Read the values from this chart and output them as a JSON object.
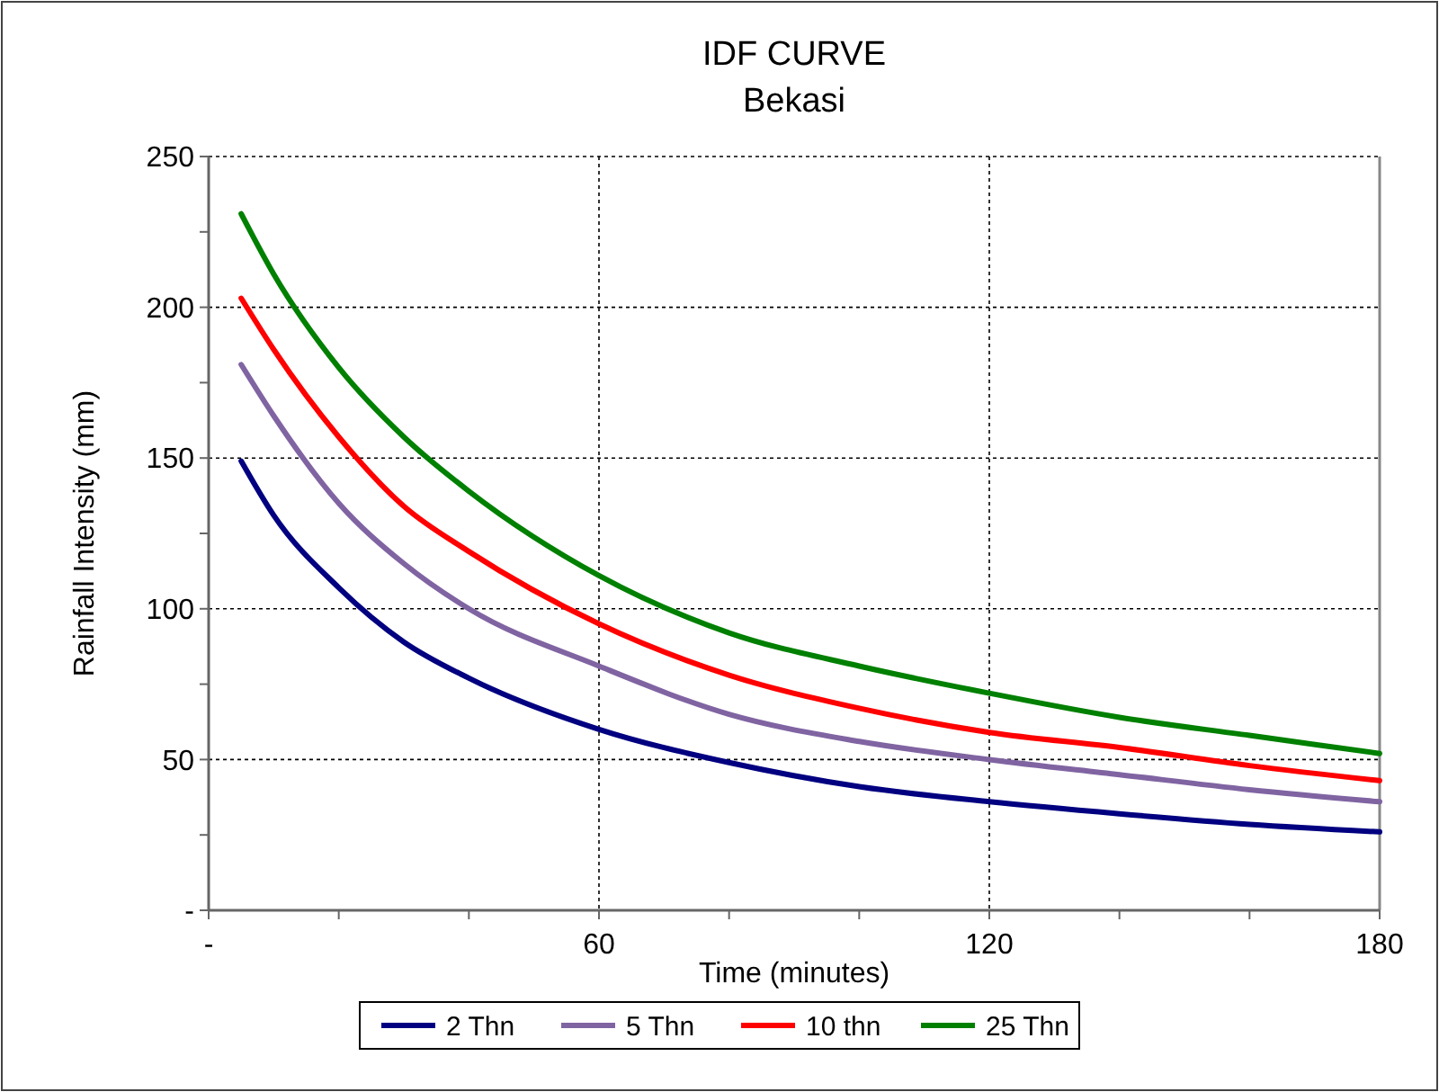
{
  "chart_data": {
    "type": "line",
    "title": "IDF CURVE",
    "subtitle": "Bekasi",
    "xlabel": "Time (minutes)",
    "ylabel": "Rainfall Intensity (mm)",
    "x": [
      5,
      10,
      20,
      30,
      40,
      60,
      80,
      100,
      120,
      140,
      160,
      180
    ],
    "series": [
      {
        "name": "2 Thn",
        "color": "#000080",
        "values": [
          149,
          131,
          107,
          89,
          77,
          60,
          49,
          41,
          36,
          32,
          28.5,
          26
        ]
      },
      {
        "name": "5 Thn",
        "color": "#8064a2",
        "values": [
          181,
          164,
          135,
          115,
          100,
          81,
          65,
          56,
          50,
          45,
          40,
          36
        ]
      },
      {
        "name": "10 thn",
        "color": "#ff0000",
        "values": [
          203,
          186,
          157,
          134,
          119,
          95,
          78,
          67,
          59,
          54,
          48,
          43
        ]
      },
      {
        "name": "25 Thn",
        "color": "#008000",
        "values": [
          231,
          211,
          180,
          157,
          139,
          111,
          92,
          81,
          72,
          64,
          58,
          52
        ]
      }
    ],
    "xlim": [
      0,
      180
    ],
    "xticks": [
      {
        "value": 0,
        "label": "-"
      },
      {
        "value": 20,
        "label": null
      },
      {
        "value": 40,
        "label": null
      },
      60,
      {
        "value": 80,
        "label": null
      },
      {
        "value": 100,
        "label": null
      },
      120,
      {
        "value": 140,
        "label": null
      },
      {
        "value": 160,
        "label": null
      },
      180
    ],
    "ylim": [
      0,
      250
    ],
    "yticks": [
      {
        "value": 0,
        "label": "-"
      },
      {
        "value": 25,
        "label": null
      },
      50,
      {
        "value": 75,
        "label": null
      },
      100,
      {
        "value": 125,
        "label": null
      },
      150,
      {
        "value": 175,
        "label": null
      },
      200,
      {
        "value": 225,
        "label": null
      },
      250
    ],
    "grid": true,
    "legend": "bottom",
    "marker": "none",
    "line_style": "solid"
  }
}
